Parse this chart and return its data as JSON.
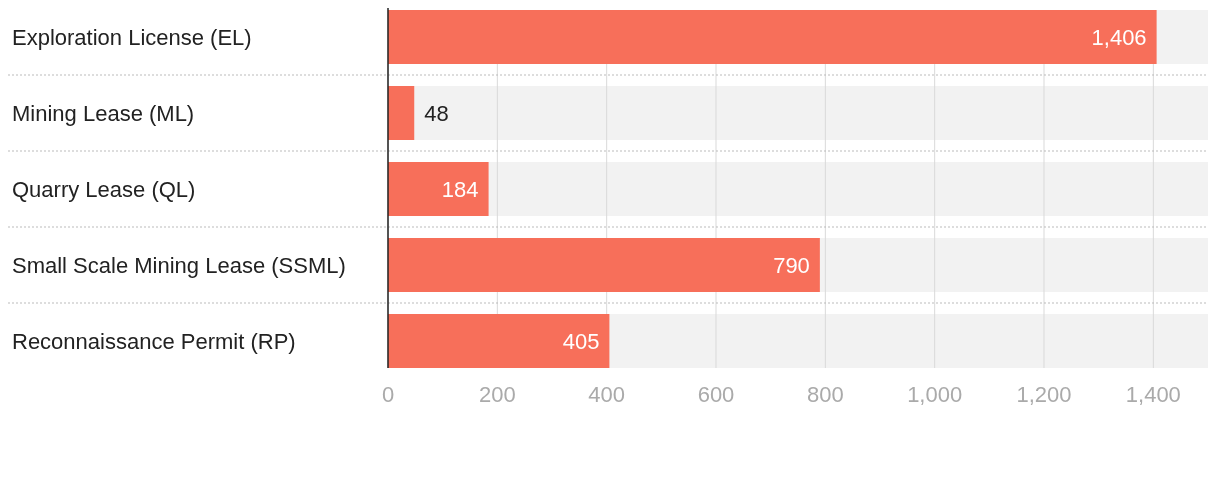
{
  "chart_data": {
    "type": "bar",
    "orientation": "horizontal",
    "categories": [
      "Exploration License (EL)",
      "Mining Lease (ML)",
      "Quarry Lease (QL)",
      "Small Scale Mining Lease (SSML)",
      "Reconnaissance Permit (RP)"
    ],
    "values": [
      1406,
      48,
      184,
      790,
      405
    ],
    "value_labels": [
      "1,406",
      "48",
      "184",
      "790",
      "405"
    ],
    "color": "#f76f5a",
    "xlim": [
      0,
      1500
    ],
    "xticks": [
      0,
      200,
      400,
      600,
      800,
      {
        "value": 1000,
        "label": "1,000"
      },
      {
        "value": 1200,
        "label": "1,200"
      },
      {
        "value": 1400,
        "label": "1,400"
      }
    ],
    "grid": "x"
  }
}
